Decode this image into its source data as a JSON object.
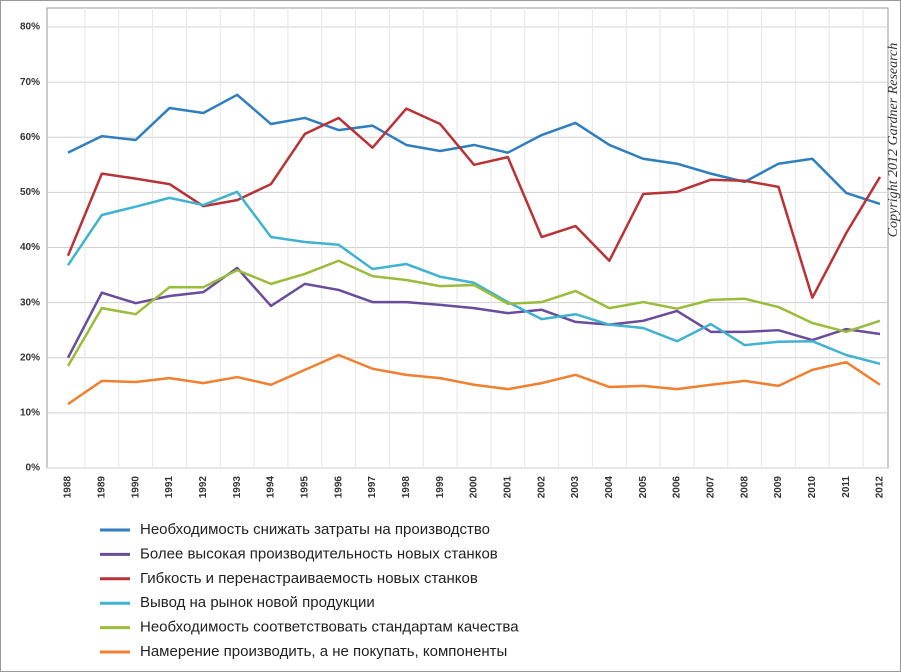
{
  "chart_data": {
    "type": "line",
    "categories": [
      "1988",
      "1989",
      "1990",
      "1991",
      "1992",
      "1993",
      "1994",
      "1995",
      "1996",
      "1997",
      "1998",
      "1999",
      "2000",
      "2001",
      "2002",
      "2003",
      "2004",
      "2005",
      "2006",
      "2007",
      "2008",
      "2009",
      "2010",
      "2011",
      "2012"
    ],
    "series": [
      {
        "name": "Необходимость снижать затраты на производство",
        "color": "#2f7ebd",
        "values": [
          57.2,
          60.2,
          59.5,
          65.3,
          64.4,
          67.7,
          62.4,
          63.5,
          61.3,
          62.1,
          58.6,
          57.5,
          58.6,
          57.2,
          60.4,
          62.6,
          58.6,
          56.1,
          55.2,
          53.4,
          51.9,
          55.2,
          56.1,
          49.9,
          47.9
        ]
      },
      {
        "name": "Более высокая производительность новых станков",
        "color": "#6a4c9c",
        "values": [
          20.0,
          31.8,
          29.9,
          31.2,
          31.9,
          36.3,
          29.4,
          33.4,
          32.3,
          30.1,
          30.1,
          29.6,
          29.0,
          28.1,
          28.7,
          26.5,
          26.0,
          26.7,
          28.5,
          24.7,
          24.7,
          25.0,
          23.2,
          25.2,
          24.3
        ]
      },
      {
        "name": "Гибкость и перенастраиваемость новых станков",
        "color": "#b83236",
        "values": [
          38.5,
          53.4,
          52.5,
          51.5,
          47.5,
          48.6,
          51.5,
          60.6,
          63.5,
          58.1,
          65.2,
          62.4,
          55.0,
          56.4,
          41.9,
          43.9,
          37.6,
          49.7,
          50.1,
          52.3,
          52.1,
          51.0,
          30.9,
          42.6,
          52.8
        ]
      },
      {
        "name": "Вывод на рынок новой продукции",
        "color": "#3fb3cf",
        "values": [
          36.8,
          45.9,
          47.4,
          49.0,
          47.7,
          50.1,
          41.9,
          41.0,
          40.5,
          36.1,
          37.0,
          34.7,
          33.6,
          30.1,
          27.0,
          27.9,
          26.0,
          25.4,
          23.0,
          26.1,
          22.3,
          22.9,
          23.0,
          20.5,
          18.9
        ]
      },
      {
        "name": "Необходимость соответствовать стандартам качества",
        "color": "#9bbb3b",
        "values": [
          18.5,
          29.0,
          27.9,
          32.8,
          32.8,
          35.9,
          33.4,
          35.2,
          37.6,
          34.8,
          34.1,
          33.0,
          33.2,
          29.8,
          30.1,
          32.1,
          29.0,
          30.1,
          28.9,
          30.5,
          30.7,
          29.2,
          26.3,
          24.7,
          26.7
        ]
      },
      {
        "name": "Намерение производить, а не покупать, компоненты",
        "color": "#f08030",
        "values": [
          11.6,
          15.8,
          15.6,
          16.3,
          15.4,
          16.5,
          15.1,
          17.8,
          20.5,
          18.0,
          16.9,
          16.3,
          15.1,
          14.3,
          15.4,
          16.9,
          14.7,
          14.9,
          14.3,
          15.1,
          15.8,
          14.9,
          17.8,
          19.2,
          15.1
        ]
      }
    ],
    "ylim": [
      0,
      80
    ],
    "yticks": [
      {
        "value": 0,
        "label": "0%"
      },
      {
        "value": 10,
        "label": "10%"
      },
      {
        "value": 20,
        "label": "20%"
      },
      {
        "value": 30,
        "label": "30%"
      },
      {
        "value": 40,
        "label": "40%"
      },
      {
        "value": 50,
        "label": "50%"
      },
      {
        "value": 60,
        "label": "60%"
      },
      {
        "value": 70,
        "label": "70%"
      },
      {
        "value": 80,
        "label": "80%"
      }
    ],
    "grid": true,
    "annotations": [
      "Copyright 2012 Gardner Research"
    ]
  }
}
